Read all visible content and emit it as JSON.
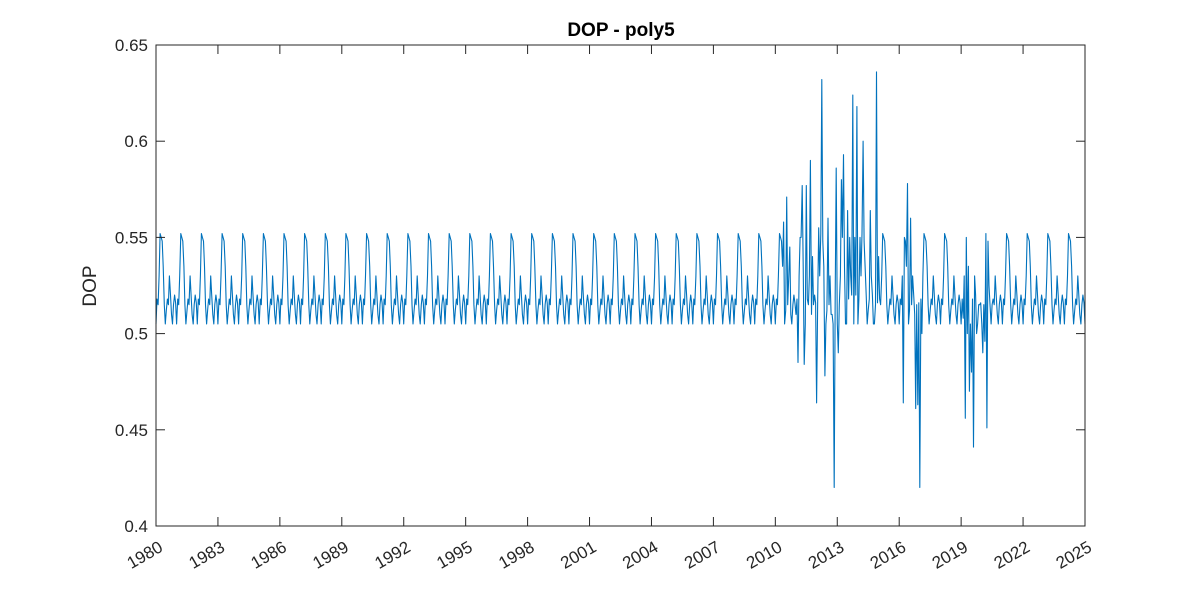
{
  "chart_data": {
    "type": "line",
    "title": "DOP - poly5",
    "xlabel": "",
    "ylabel": "DOP",
    "xlim": [
      "1980",
      "2025"
    ],
    "ylim": [
      0.4,
      0.65
    ],
    "x_ticks": [
      "1980",
      "1983",
      "1986",
      "1989",
      "1992",
      "1995",
      "1998",
      "2001",
      "2004",
      "2007",
      "2010",
      "2013",
      "2016",
      "2019",
      "2022",
      "2025"
    ],
    "y_ticks": [
      "0.4",
      "0.45",
      "0.5",
      "0.55",
      "0.6",
      "0.65"
    ],
    "grid": false,
    "series_color": "#0072BD",
    "x_unit": "year",
    "baseline_cycle": {
      "phase_years": [
        0,
        0.05,
        0.1,
        0.15,
        0.2,
        0.25,
        0.3,
        0.35,
        0.4,
        0.45,
        0.5,
        0.55,
        0.6,
        0.65,
        0.7,
        0.75,
        0.8,
        0.85,
        0.9,
        0.95
      ],
      "values": [
        0.505,
        0.518,
        0.515,
        0.53,
        0.552,
        0.55,
        0.548,
        0.535,
        0.515,
        0.505,
        0.512,
        0.518,
        0.515,
        0.53,
        0.52,
        0.51,
        0.505,
        0.515,
        0.52,
        0.516
      ]
    },
    "anomalies": [
      {
        "x": 2010.4,
        "y": 0.558
      },
      {
        "x": 2010.55,
        "y": 0.571
      },
      {
        "x": 2010.7,
        "y": 0.545
      },
      {
        "x": 2011.0,
        "y": 0.51
      },
      {
        "x": 2011.1,
        "y": 0.485
      },
      {
        "x": 2011.2,
        "y": 0.55
      },
      {
        "x": 2011.3,
        "y": 0.577
      },
      {
        "x": 2011.4,
        "y": 0.484
      },
      {
        "x": 2011.5,
        "y": 0.577
      },
      {
        "x": 2011.7,
        "y": 0.59
      },
      {
        "x": 2011.8,
        "y": 0.54
      },
      {
        "x": 2012.0,
        "y": 0.464
      },
      {
        "x": 2012.1,
        "y": 0.555
      },
      {
        "x": 2012.25,
        "y": 0.632
      },
      {
        "x": 2012.4,
        "y": 0.478
      },
      {
        "x": 2012.55,
        "y": 0.56
      },
      {
        "x": 2012.7,
        "y": 0.51
      },
      {
        "x": 2012.85,
        "y": 0.42
      },
      {
        "x": 2012.95,
        "y": 0.586
      },
      {
        "x": 2013.05,
        "y": 0.49
      },
      {
        "x": 2013.2,
        "y": 0.58
      },
      {
        "x": 2013.3,
        "y": 0.593
      },
      {
        "x": 2013.4,
        "y": 0.505
      },
      {
        "x": 2013.5,
        "y": 0.564
      },
      {
        "x": 2013.6,
        "y": 0.55
      },
      {
        "x": 2013.75,
        "y": 0.624
      },
      {
        "x": 2013.85,
        "y": 0.55
      },
      {
        "x": 2013.95,
        "y": 0.618
      },
      {
        "x": 2014.1,
        "y": 0.55
      },
      {
        "x": 2014.25,
        "y": 0.6
      },
      {
        "x": 2014.4,
        "y": 0.52
      },
      {
        "x": 2014.6,
        "y": 0.564
      },
      {
        "x": 2014.75,
        "y": 0.505
      },
      {
        "x": 2014.9,
        "y": 0.636
      },
      {
        "x": 2015.0,
        "y": 0.54
      },
      {
        "x": 2016.2,
        "y": 0.464
      },
      {
        "x": 2016.4,
        "y": 0.578
      },
      {
        "x": 2016.55,
        "y": 0.56
      },
      {
        "x": 2016.8,
        "y": 0.461
      },
      {
        "x": 2016.9,
        "y": 0.463
      },
      {
        "x": 2017.0,
        "y": 0.42
      },
      {
        "x": 2017.1,
        "y": 0.5
      },
      {
        "x": 2019.1,
        "y": 0.508
      },
      {
        "x": 2019.2,
        "y": 0.456
      },
      {
        "x": 2019.3,
        "y": 0.5
      },
      {
        "x": 2019.4,
        "y": 0.47
      },
      {
        "x": 2019.5,
        "y": 0.48
      },
      {
        "x": 2019.6,
        "y": 0.441
      },
      {
        "x": 2019.75,
        "y": 0.5
      },
      {
        "x": 2019.9,
        "y": 0.515
      },
      {
        "x": 2020.05,
        "y": 0.49
      },
      {
        "x": 2020.15,
        "y": 0.496
      },
      {
        "x": 2020.25,
        "y": 0.451
      },
      {
        "x": 2020.35,
        "y": 0.525
      },
      {
        "x": 2020.5,
        "y": 0.515
      }
    ]
  }
}
